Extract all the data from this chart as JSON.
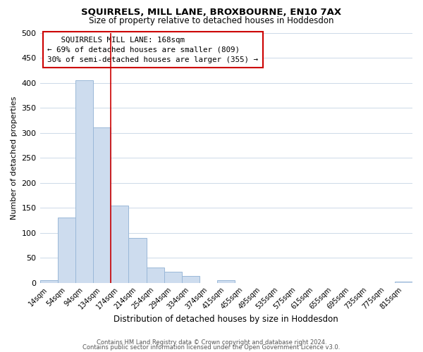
{
  "title": "SQUIRRELS, MILL LANE, BROXBOURNE, EN10 7AX",
  "subtitle": "Size of property relative to detached houses in Hoddesdon",
  "xlabel": "Distribution of detached houses by size in Hoddesdon",
  "ylabel": "Number of detached properties",
  "bar_labels": [
    "14sqm",
    "54sqm",
    "94sqm",
    "134sqm",
    "174sqm",
    "214sqm",
    "254sqm",
    "294sqm",
    "334sqm",
    "374sqm",
    "415sqm",
    "455sqm",
    "495sqm",
    "535sqm",
    "575sqm",
    "615sqm",
    "655sqm",
    "695sqm",
    "735sqm",
    "775sqm",
    "815sqm"
  ],
  "bar_heights": [
    5,
    130,
    405,
    310,
    155,
    90,
    30,
    22,
    14,
    0,
    5,
    0,
    0,
    0,
    0,
    0,
    0,
    0,
    0,
    0,
    2
  ],
  "bar_color": "#cddcee",
  "bar_edge_color": "#9ab8d8",
  "ylim": [
    0,
    500
  ],
  "yticks": [
    0,
    50,
    100,
    150,
    200,
    250,
    300,
    350,
    400,
    450,
    500
  ],
  "vline_x": 3.5,
  "vline_color": "#cc0000",
  "annotation_title": "SQUIRRELS MILL LANE: 168sqm",
  "annotation_line1": "← 69% of detached houses are smaller (809)",
  "annotation_line2": "30% of semi-detached houses are larger (355) →",
  "footer_line1": "Contains HM Land Registry data © Crown copyright and database right 2024.",
  "footer_line2": "Contains public sector information licensed under the Open Government Licence v3.0.",
  "background_color": "#ffffff",
  "grid_color": "#ccd9e8"
}
